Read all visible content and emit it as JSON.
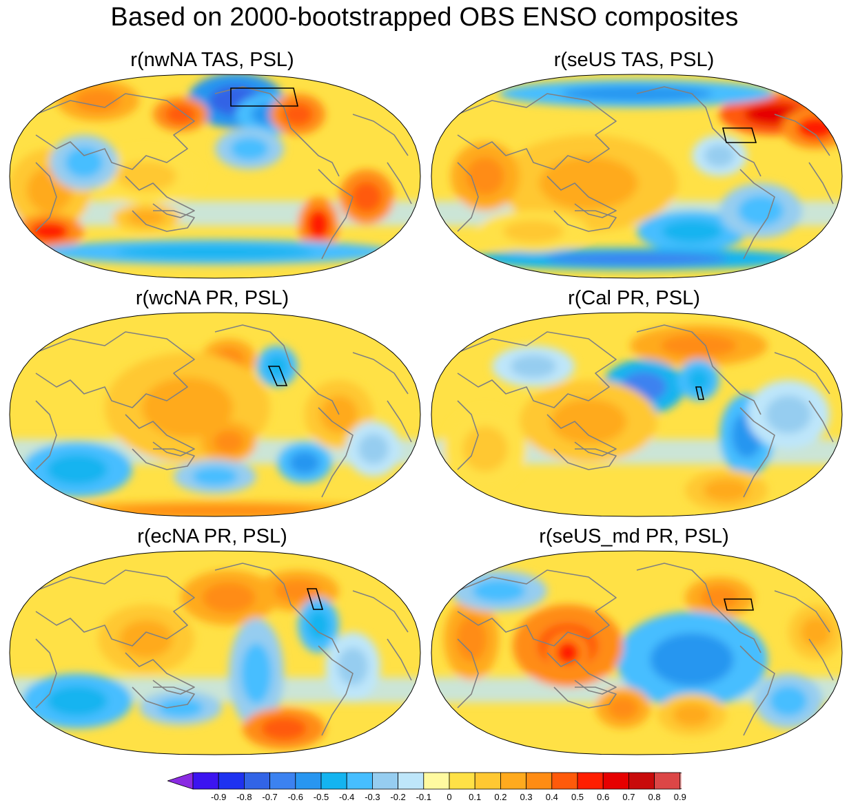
{
  "title": "Based on 2000-bootstrapped OBS ENSO composites",
  "panels": [
    {
      "title": "r(nwNA TAS, PSL)"
    },
    {
      "title": "r(seUS TAS, PSL)"
    },
    {
      "title": "r(wcNA PR, PSL)"
    },
    {
      "title": "r(Cal PR, PSL)"
    },
    {
      "title": "r(ecNA PR, PSL)"
    },
    {
      "title": "r(seUS_md PR, PSL)"
    }
  ],
  "colorbar": {
    "labels": [
      "-0.9",
      "-0.8",
      "-0.7",
      "-0.6",
      "-0.5",
      "-0.4",
      "-0.3",
      "-0.2",
      "-0.1",
      "0",
      "0.1",
      "0.2",
      "0.3",
      "0.4",
      "0.5",
      "0.6",
      "0.7",
      "0.8",
      "0.9"
    ],
    "colors": [
      "#8a2be2",
      "#3c14f0",
      "#1e32f0",
      "#3264e6",
      "#3c82f0",
      "#2896f0",
      "#14b4f0",
      "#46beff",
      "#96cdf0",
      "#bee6fa",
      "#fffaa0",
      "#ffe146",
      "#ffc832",
      "#ffaa1e",
      "#ff8c14",
      "#ff5a0a",
      "#ff1e00",
      "#e60000",
      "#c80a0a",
      "#dc4646",
      "#ffb4b4"
    ]
  },
  "chart_data": [
    {
      "type": "heatmap",
      "title": "r(nwNA TAS, PSL)",
      "projection": "Robinson (Pacific-centered)",
      "region_box": "northwestern North America"
    },
    {
      "type": "heatmap",
      "title": "r(seUS TAS, PSL)",
      "projection": "Robinson (Pacific-centered)",
      "region_box": "southeastern US"
    },
    {
      "type": "heatmap",
      "title": "r(wcNA PR, PSL)",
      "projection": "Robinson (Pacific-centered)",
      "region_box": "west-central North America"
    },
    {
      "type": "heatmap",
      "title": "r(Cal PR, PSL)",
      "projection": "Robinson (Pacific-centered)",
      "region_box": "California"
    },
    {
      "type": "heatmap",
      "title": "r(ecNA PR, PSL)",
      "projection": "Robinson (Pacific-centered)",
      "region_box": "east-central North America"
    },
    {
      "type": "heatmap",
      "title": "r(seUS_md PR, PSL)",
      "projection": "Robinson (Pacific-centered)",
      "region_box": "southeastern US"
    }
  ]
}
